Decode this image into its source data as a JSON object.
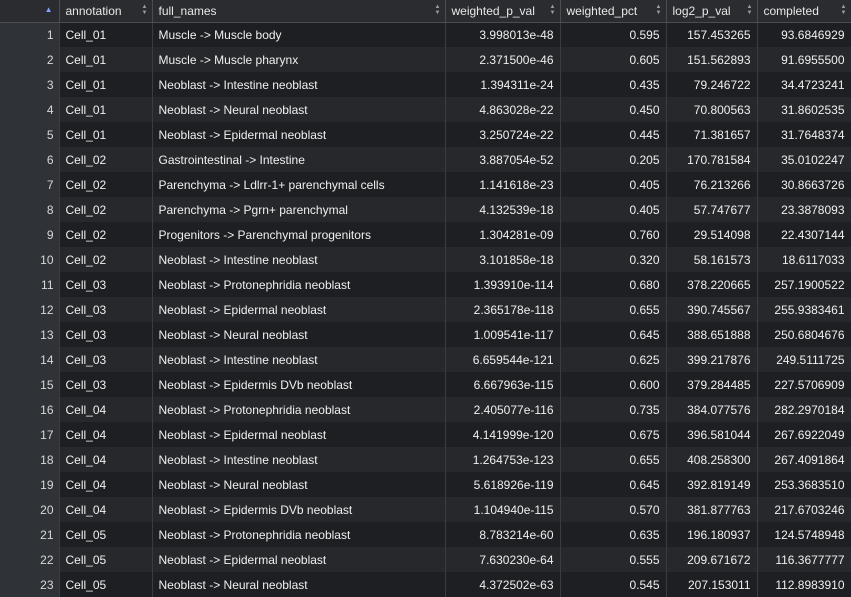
{
  "columns": [
    "annotation",
    "full_names",
    "weighted_p_val",
    "weighted_pct",
    "log2_p_val",
    "completed"
  ],
  "rows": [
    {
      "n": "1",
      "annotation": "Cell_01",
      "full_names": "Muscle -> Muscle body",
      "weighted_p_val": "3.998013e-48",
      "weighted_pct": "0.595",
      "log2_p_val": "157.453265",
      "completed": "93.6846929"
    },
    {
      "n": "2",
      "annotation": "Cell_01",
      "full_names": "Muscle -> Muscle pharynx",
      "weighted_p_val": "2.371500e-46",
      "weighted_pct": "0.605",
      "log2_p_val": "151.562893",
      "completed": "91.6955500"
    },
    {
      "n": "3",
      "annotation": "Cell_01",
      "full_names": "Neoblast -> Intestine neoblast",
      "weighted_p_val": "1.394311e-24",
      "weighted_pct": "0.435",
      "log2_p_val": "79.246722",
      "completed": "34.4723241"
    },
    {
      "n": "4",
      "annotation": "Cell_01",
      "full_names": "Neoblast -> Neural neoblast",
      "weighted_p_val": "4.863028e-22",
      "weighted_pct": "0.450",
      "log2_p_val": "70.800563",
      "completed": "31.8602535"
    },
    {
      "n": "5",
      "annotation": "Cell_01",
      "full_names": "Neoblast -> Epidermal neoblast",
      "weighted_p_val": "3.250724e-22",
      "weighted_pct": "0.445",
      "log2_p_val": "71.381657",
      "completed": "31.7648374"
    },
    {
      "n": "6",
      "annotation": "Cell_02",
      "full_names": "Gastrointestinal -> Intestine",
      "weighted_p_val": "3.887054e-52",
      "weighted_pct": "0.205",
      "log2_p_val": "170.781584",
      "completed": "35.0102247"
    },
    {
      "n": "7",
      "annotation": "Cell_02",
      "full_names": "Parenchyma -> Ldlrr-1+ parenchymal cells",
      "weighted_p_val": "1.141618e-23",
      "weighted_pct": "0.405",
      "log2_p_val": "76.213266",
      "completed": "30.8663726"
    },
    {
      "n": "8",
      "annotation": "Cell_02",
      "full_names": "Parenchyma -> Pgrn+ parenchymal",
      "weighted_p_val": "4.132539e-18",
      "weighted_pct": "0.405",
      "log2_p_val": "57.747677",
      "completed": "23.3878093"
    },
    {
      "n": "9",
      "annotation": "Cell_02",
      "full_names": "Progenitors -> Parenchymal progenitors",
      "weighted_p_val": "1.304281e-09",
      "weighted_pct": "0.760",
      "log2_p_val": "29.514098",
      "completed": "22.4307144"
    },
    {
      "n": "10",
      "annotation": "Cell_02",
      "full_names": "Neoblast -> Intestine neoblast",
      "weighted_p_val": "3.101858e-18",
      "weighted_pct": "0.320",
      "log2_p_val": "58.161573",
      "completed": "18.6117033"
    },
    {
      "n": "11",
      "annotation": "Cell_03",
      "full_names": "Neoblast -> Protonephridia neoblast",
      "weighted_p_val": "1.393910e-114",
      "weighted_pct": "0.680",
      "log2_p_val": "378.220665",
      "completed": "257.1900522"
    },
    {
      "n": "12",
      "annotation": "Cell_03",
      "full_names": "Neoblast -> Epidermal neoblast",
      "weighted_p_val": "2.365178e-118",
      "weighted_pct": "0.655",
      "log2_p_val": "390.745567",
      "completed": "255.9383461"
    },
    {
      "n": "13",
      "annotation": "Cell_03",
      "full_names": "Neoblast -> Neural neoblast",
      "weighted_p_val": "1.009541e-117",
      "weighted_pct": "0.645",
      "log2_p_val": "388.651888",
      "completed": "250.6804676"
    },
    {
      "n": "14",
      "annotation": "Cell_03",
      "full_names": "Neoblast -> Intestine neoblast",
      "weighted_p_val": "6.659544e-121",
      "weighted_pct": "0.625",
      "log2_p_val": "399.217876",
      "completed": "249.5111725"
    },
    {
      "n": "15",
      "annotation": "Cell_03",
      "full_names": "Neoblast -> Epidermis DVb neoblast",
      "weighted_p_val": "6.667963e-115",
      "weighted_pct": "0.600",
      "log2_p_val": "379.284485",
      "completed": "227.5706909"
    },
    {
      "n": "16",
      "annotation": "Cell_04",
      "full_names": "Neoblast -> Protonephridia neoblast",
      "weighted_p_val": "2.405077e-116",
      "weighted_pct": "0.735",
      "log2_p_val": "384.077576",
      "completed": "282.2970184"
    },
    {
      "n": "17",
      "annotation": "Cell_04",
      "full_names": "Neoblast -> Epidermal neoblast",
      "weighted_p_val": "4.141999e-120",
      "weighted_pct": "0.675",
      "log2_p_val": "396.581044",
      "completed": "267.6922049"
    },
    {
      "n": "18",
      "annotation": "Cell_04",
      "full_names": "Neoblast -> Intestine neoblast",
      "weighted_p_val": "1.264753e-123",
      "weighted_pct": "0.655",
      "log2_p_val": "408.258300",
      "completed": "267.4091864"
    },
    {
      "n": "19",
      "annotation": "Cell_04",
      "full_names": "Neoblast -> Neural neoblast",
      "weighted_p_val": "5.618926e-119",
      "weighted_pct": "0.645",
      "log2_p_val": "392.819149",
      "completed": "253.3683510"
    },
    {
      "n": "20",
      "annotation": "Cell_04",
      "full_names": "Neoblast -> Epidermis DVb neoblast",
      "weighted_p_val": "1.104940e-115",
      "weighted_pct": "0.570",
      "log2_p_val": "381.877763",
      "completed": "217.6703246"
    },
    {
      "n": "21",
      "annotation": "Cell_05",
      "full_names": "Neoblast -> Protonephridia neoblast",
      "weighted_p_val": "8.783214e-60",
      "weighted_pct": "0.635",
      "log2_p_val": "196.180937",
      "completed": "124.5748948"
    },
    {
      "n": "22",
      "annotation": "Cell_05",
      "full_names": "Neoblast -> Epidermal neoblast",
      "weighted_p_val": "7.630230e-64",
      "weighted_pct": "0.555",
      "log2_p_val": "209.671672",
      "completed": "116.3677777"
    },
    {
      "n": "23",
      "annotation": "Cell_05",
      "full_names": "Neoblast -> Neural neoblast",
      "weighted_p_val": "4.372502e-63",
      "weighted_pct": "0.545",
      "log2_p_val": "207.153011",
      "completed": "112.8983910"
    }
  ]
}
